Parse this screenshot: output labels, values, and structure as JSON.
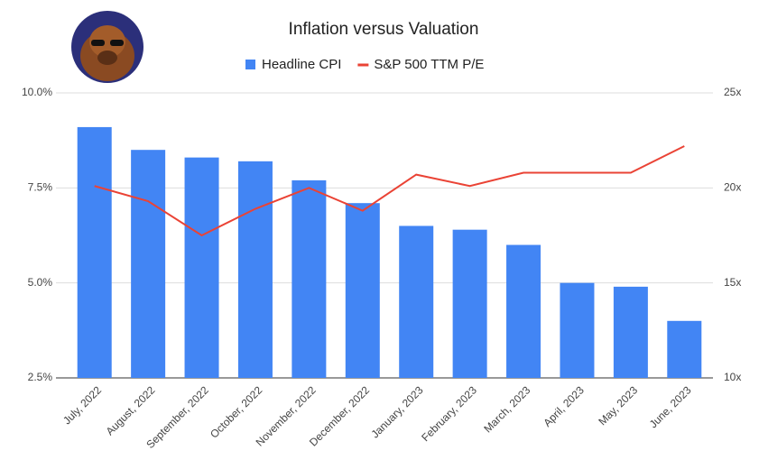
{
  "chart_data": {
    "type": "bar-line",
    "title": "Inflation versus Valuation",
    "categories": [
      "July, 2022",
      "August, 2022",
      "September, 2022",
      "October, 2022",
      "November, 2022",
      "December, 2022",
      "January, 2023",
      "February, 2023",
      "March, 2023",
      "April, 2023",
      "May, 2023",
      "June, 2023"
    ],
    "series": [
      {
        "name": "Headline CPI",
        "type": "bar",
        "color": "#4285f4",
        "values": [
          9.1,
          8.5,
          8.3,
          8.2,
          7.7,
          7.1,
          6.5,
          6.4,
          6.0,
          5.0,
          4.9,
          4.0
        ]
      },
      {
        "name": "S&P 500 TTM P/E",
        "type": "line",
        "axis": "y2",
        "color": "#ea4335",
        "values": [
          20.1,
          19.3,
          17.5,
          18.9,
          20.0,
          18.8,
          20.7,
          20.1,
          20.8,
          20.8,
          20.8,
          22.2
        ]
      }
    ],
    "ylim": [
      2.5,
      10.0
    ],
    "yticks": [
      {
        "value": 2.5,
        "label": "2.5%"
      },
      {
        "value": 5.0,
        "label": "5.0%"
      },
      {
        "value": 7.5,
        "label": "7.5%"
      },
      {
        "value": 10.0,
        "label": "10.0%"
      }
    ],
    "y2lim": [
      10,
      25
    ],
    "y2ticks": [
      {
        "value": 10,
        "label": "10x"
      },
      {
        "value": 15,
        "label": "15x"
      },
      {
        "value": 20,
        "label": "20x"
      },
      {
        "value": 25,
        "label": "25x"
      }
    ],
    "grid": true,
    "legend": "top"
  }
}
